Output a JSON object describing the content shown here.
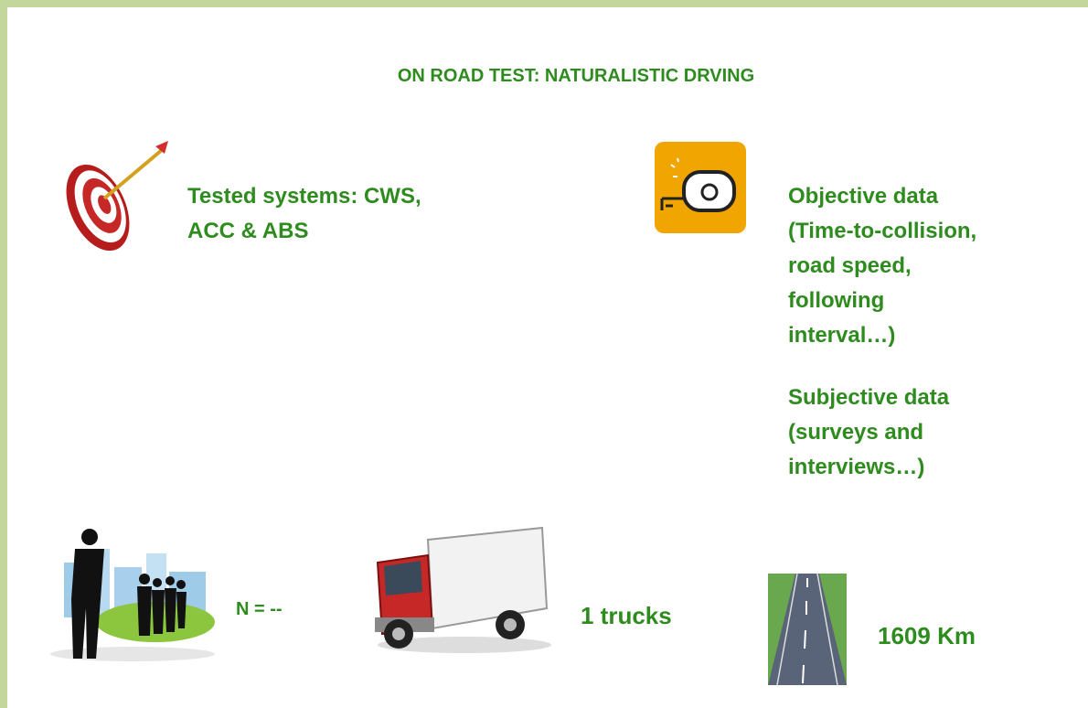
{
  "header": {
    "title": "ON ROAD TEST: NATURALISTIC DRVING"
  },
  "tested_systems": {
    "lines": [
      "Tested systems: CWS,",
      "ACC & ABS"
    ]
  },
  "objective_data": {
    "lines": [
      "Objective data",
      "(Time-to-collision,",
      "road speed,",
      "following",
      "interval…)"
    ]
  },
  "subjective_data": {
    "lines": [
      "Subjective data",
      "(surveys and",
      "interviews…)"
    ]
  },
  "participants": {
    "label": "N = --"
  },
  "vehicles": {
    "label": "1 trucks"
  },
  "distance": {
    "label": "1609 Km"
  }
}
